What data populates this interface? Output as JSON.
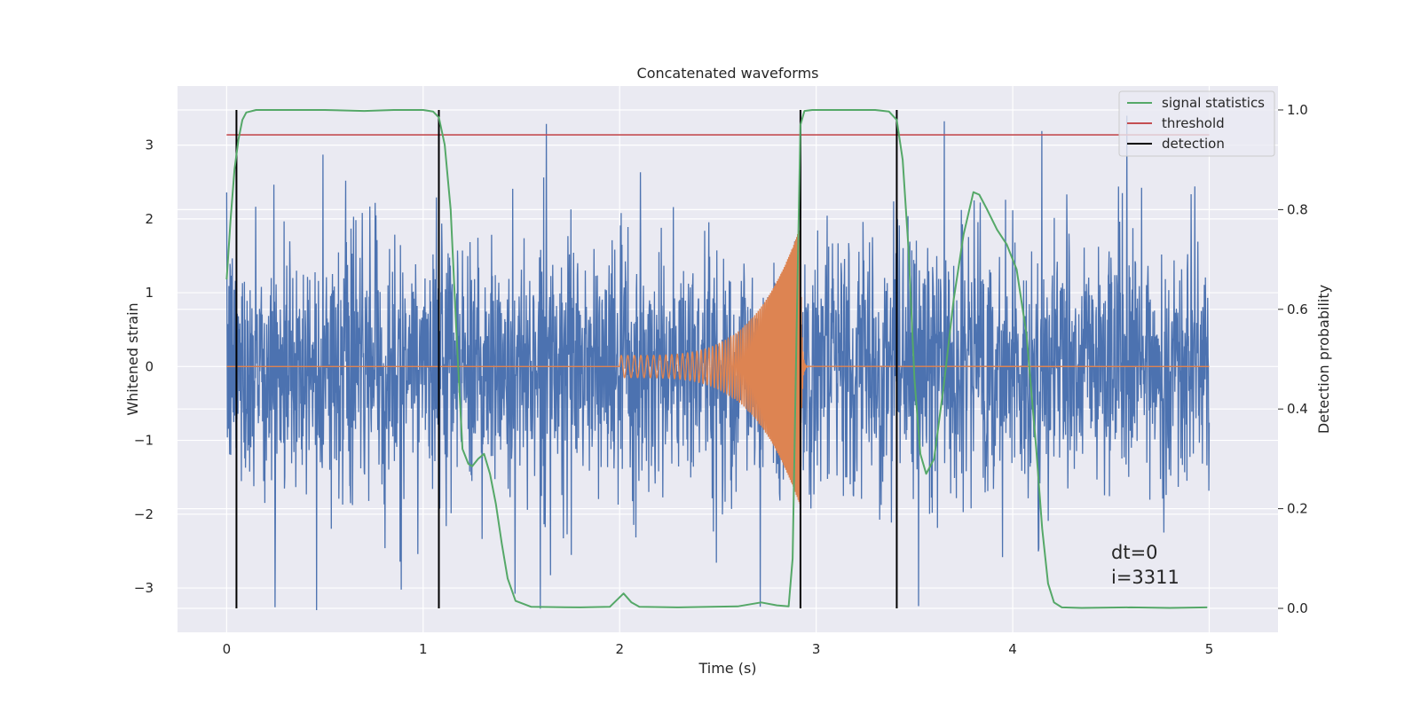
{
  "chart_data": {
    "type": "line",
    "title": "Concatenated waveforms",
    "xlabel": "Time (s)",
    "ylabel": "Whitened strain",
    "y2label": "Detection probability",
    "xlim": [
      -0.25,
      5.35
    ],
    "ylim": [
      -3.6,
      3.8
    ],
    "y2lim": [
      -0.048,
      1.048
    ],
    "xticks": [
      0,
      1,
      2,
      3,
      4,
      5
    ],
    "yticks": [
      -3,
      -2,
      -1,
      0,
      1,
      2,
      3
    ],
    "y2ticks": [
      0.0,
      0.2,
      0.4,
      0.6,
      0.8,
      1.0
    ],
    "xtick_labels": [
      "0",
      "1",
      "2",
      "3",
      "4",
      "5"
    ],
    "ytick_labels": [
      "−3",
      "−2",
      "−1",
      "0",
      "1",
      "2",
      "3"
    ],
    "y2tick_labels": [
      "0.0",
      "0.2",
      "0.4",
      "0.6",
      "0.8",
      "1.0"
    ],
    "grid": true,
    "legend_position": "top-right",
    "colors": {
      "noise": "#4c72b0",
      "injected_waveform": "#dd8452",
      "signal_statistics": "#55a868",
      "threshold": "#c44e52",
      "detection": "#000000",
      "background": "#eaeaf2",
      "grid": "#ffffff"
    },
    "noise": {
      "x_range": [
        0,
        5
      ],
      "axis": "left",
      "note_shape": "dense whitened noise, mostly within ±2, spikes to about ±3.4",
      "amplitude_range": [
        -3.3,
        3.4
      ]
    },
    "injected_waveform": {
      "axis": "left",
      "chirp_start": 2.0,
      "merger": 2.92,
      "start_amplitude": 0.15,
      "peak_amplitude": 1.9,
      "start_frequency_hz": 30,
      "peak_frequency_hz": 220
    },
    "series": [
      {
        "name": "signal statistics",
        "axis": "right",
        "x": [
          0.0,
          0.02,
          0.04,
          0.06,
          0.08,
          0.1,
          0.15,
          0.3,
          0.5,
          0.7,
          0.85,
          1.0,
          1.05,
          1.08,
          1.11,
          1.14,
          1.17,
          1.2,
          1.23,
          1.25,
          1.28,
          1.31,
          1.34,
          1.37,
          1.4,
          1.43,
          1.47,
          1.55,
          1.8,
          1.95,
          2.02,
          2.06,
          2.1,
          2.3,
          2.6,
          2.72,
          2.8,
          2.86,
          2.88,
          2.9,
          2.92,
          2.94,
          2.98,
          3.1,
          3.3,
          3.37,
          3.41,
          3.44,
          3.47,
          3.5,
          3.53,
          3.56,
          3.6,
          3.65,
          3.7,
          3.75,
          3.8,
          3.83,
          3.87,
          3.92,
          3.97,
          4.02,
          4.07,
          4.12,
          4.15,
          4.18,
          4.21,
          4.25,
          4.35,
          4.6,
          4.8,
          4.99
        ],
        "values": [
          0.66,
          0.78,
          0.88,
          0.94,
          0.98,
          0.995,
          1.0,
          1.0,
          1.0,
          0.998,
          1.0,
          1.0,
          0.997,
          0.985,
          0.93,
          0.8,
          0.55,
          0.32,
          0.29,
          0.285,
          0.3,
          0.31,
          0.27,
          0.21,
          0.13,
          0.06,
          0.015,
          0.003,
          0.002,
          0.003,
          0.03,
          0.012,
          0.003,
          0.002,
          0.004,
          0.012,
          0.006,
          0.004,
          0.1,
          0.55,
          0.97,
          0.998,
          1.0,
          1.0,
          1.0,
          0.997,
          0.98,
          0.9,
          0.72,
          0.46,
          0.31,
          0.27,
          0.3,
          0.45,
          0.62,
          0.75,
          0.835,
          0.83,
          0.8,
          0.76,
          0.73,
          0.68,
          0.55,
          0.32,
          0.16,
          0.05,
          0.012,
          0.002,
          0.001,
          0.002,
          0.001,
          0.002
        ]
      },
      {
        "name": "threshold",
        "axis": "right",
        "x": [
          0.0,
          5.0
        ],
        "values": [
          0.95,
          0.95
        ]
      },
      {
        "name": "detection",
        "axis": "right",
        "type": "vlines",
        "x": [
          0.05,
          1.08,
          2.92,
          3.41
        ],
        "ymin": 0.0,
        "ymax": 1.0
      }
    ],
    "annotations": [
      "dt=0",
      "i=3311"
    ]
  }
}
